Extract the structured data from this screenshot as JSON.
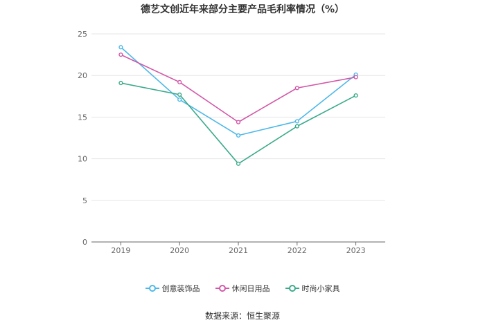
{
  "chart_data": {
    "type": "line",
    "title": "德艺文创近年来部分主要产品毛利率情况（%）",
    "categories": [
      "2019",
      "2020",
      "2021",
      "2022",
      "2023"
    ],
    "ylim": [
      0,
      25
    ],
    "yticks": [
      "0",
      "5",
      "10",
      "15",
      "20",
      "25"
    ],
    "grid": true,
    "legend_position": "bottom",
    "series": [
      {
        "name": "创意装饰品",
        "color": "#4db8e8",
        "values": [
          23.4,
          17.1,
          12.8,
          14.5,
          20.1
        ]
      },
      {
        "name": "休闲日用品",
        "color": "#d257a8",
        "values": [
          22.5,
          19.2,
          14.4,
          18.5,
          19.8
        ]
      },
      {
        "name": "时尚小家具",
        "color": "#3aaa8a",
        "values": [
          19.1,
          17.7,
          9.4,
          13.9,
          17.6
        ]
      }
    ]
  },
  "source": "数据来源：恒生聚源"
}
